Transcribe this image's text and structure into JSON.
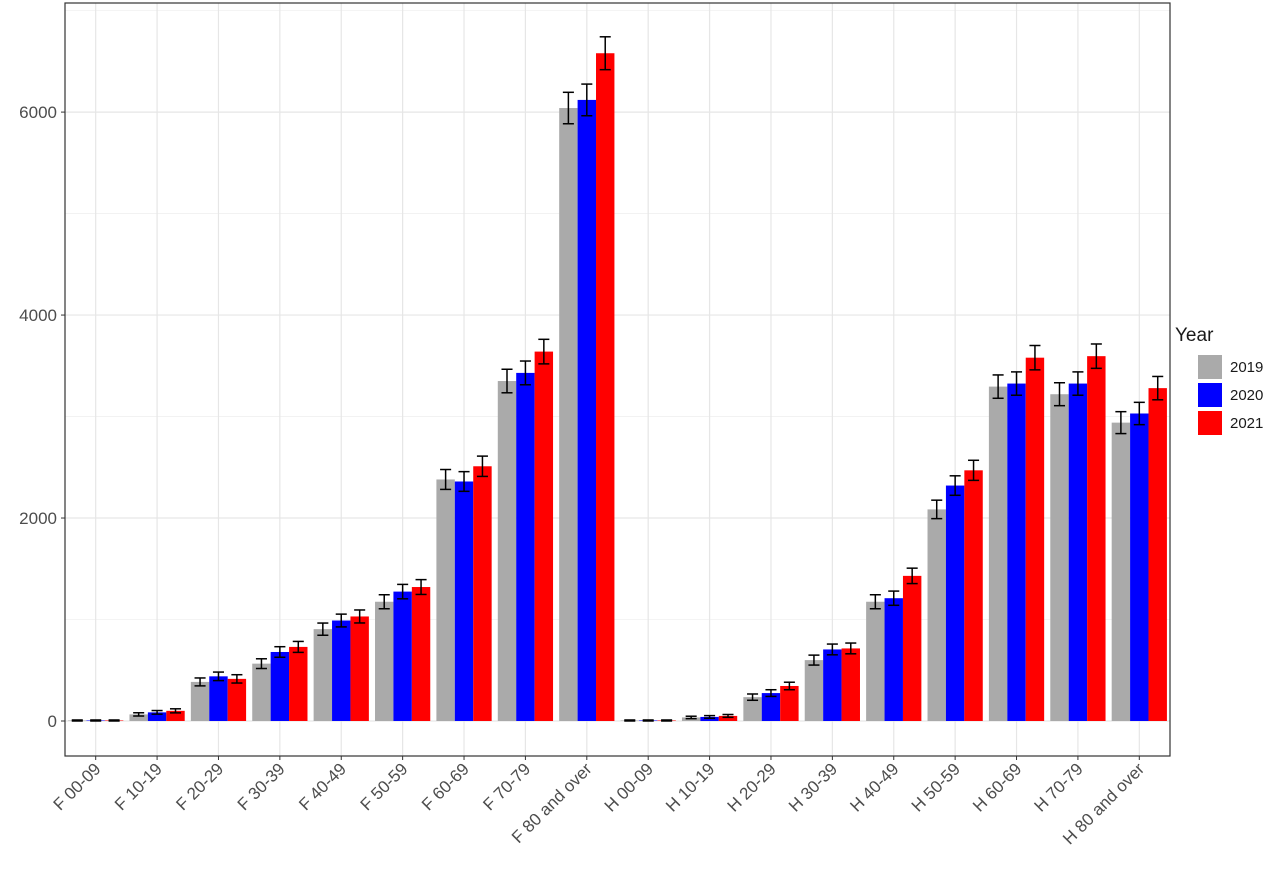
{
  "chart_data": {
    "type": "bar",
    "title": "",
    "xlabel": "",
    "ylabel": "",
    "ylim": [
      -345,
      7075
    ],
    "yticks": [
      0,
      2000,
      4000,
      6000
    ],
    "grid": true,
    "legend": {
      "title": "Year",
      "placement": "right"
    },
    "categories": [
      "F 00-09",
      "F 10-19",
      "F 20-29",
      "F 30-39",
      "F 40-49",
      "F 50-59",
      "F 60-69",
      "F 70-79",
      "F 80 and over",
      "H 00-09",
      "H 10-19",
      "H 20-29",
      "H 30-39",
      "H 40-49",
      "H 50-59",
      "H 60-69",
      "H 70-79",
      "H 80 and over"
    ],
    "series": [
      {
        "name": "2019",
        "color": "#aaaaaa",
        "values": [
          5,
          65,
          385,
          565,
          905,
          1175,
          2380,
          3350,
          6040,
          5,
          35,
          235,
          600,
          1175,
          2085,
          3295,
          3220,
          2940
        ],
        "errors": [
          5,
          16,
          39,
          48,
          60,
          69,
          98,
          116,
          155,
          5,
          12,
          31,
          49,
          69,
          91,
          115,
          113,
          108
        ]
      },
      {
        "name": "2020",
        "color": "#0000ff",
        "values": [
          5,
          85,
          440,
          680,
          990,
          1275,
          2360,
          3430,
          6120,
          5,
          40,
          275,
          705,
          1210,
          2320,
          3325,
          3325,
          3030
        ],
        "errors": [
          5,
          18,
          42,
          52,
          63,
          71,
          97,
          117,
          156,
          5,
          13,
          33,
          53,
          70,
          96,
          115,
          115,
          110
        ]
      },
      {
        "name": "2021",
        "color": "#ff0000",
        "values": [
          5,
          100,
          415,
          730,
          1030,
          1320,
          2510,
          3640,
          6580,
          5,
          50,
          345,
          715,
          1430,
          2470,
          3580,
          3595,
          3280
        ],
        "errors": [
          5,
          20,
          41,
          54,
          64,
          73,
          100,
          121,
          162,
          5,
          14,
          37,
          53,
          76,
          99,
          120,
          120,
          115
        ]
      }
    ]
  }
}
